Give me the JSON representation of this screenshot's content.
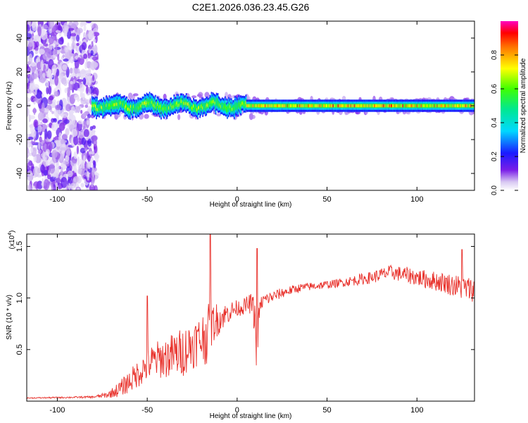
{
  "title": "C2E1.2026.036.23.45.G26",
  "chart_data": [
    {
      "type": "heatmap",
      "xlabel": "Height of straight line (km)",
      "ylabel": "Frequency (Hz)",
      "xlim": [
        -117,
        132
      ],
      "ylim": [
        -50,
        50
      ],
      "xticks": [
        -100,
        -50,
        0,
        50,
        100
      ],
      "xtick_labels": [
        "-100",
        "-50",
        "0",
        "50",
        "100"
      ],
      "yticks": [
        -40,
        -20,
        0,
        20,
        40
      ],
      "ytick_labels": [
        "-40",
        "-20",
        "0",
        "20",
        "40"
      ],
      "colorbar": {
        "label": "Normalized spectral amplitude",
        "range": [
          0,
          1
        ],
        "ticks": [
          0.0,
          0.2,
          0.4,
          0.6,
          0.8
        ],
        "tick_labels": [
          "0.0",
          "0.2",
          "0.4",
          "0.6",
          "0.8"
        ]
      },
      "description_points": {
        "noise_region_x": [
          -117,
          -80
        ],
        "signal_line_freq_hz": 0,
        "signal_start_x": -81
      }
    },
    {
      "type": "line",
      "xlabel": "Height of straight line (km)",
      "ylabel": "SNR (10 * v/v)",
      "y_multiplier": "(x10",
      "y_multiplier_exp": "4",
      "y_multiplier_close": ")",
      "xlim": [
        -117,
        132
      ],
      "ylim": [
        0,
        1.62
      ],
      "xticks": [
        -100,
        -50,
        0,
        50,
        100
      ],
      "xtick_labels": [
        "-100",
        "-50",
        "0",
        "50",
        "100"
      ],
      "yticks": [
        0.5,
        1.0,
        1.5
      ],
      "ytick_labels": [
        "0.5",
        "1.0",
        "1.5"
      ],
      "series": [
        {
          "color": "#e8302a",
          "envelope_x": [
            -117,
            -80,
            -72,
            -65,
            -58,
            -50,
            -45,
            -40,
            -35,
            -30,
            -25,
            -20,
            -17,
            -15,
            -12,
            -8,
            -4,
            0,
            4,
            8,
            10,
            11,
            12,
            14,
            18,
            25,
            35,
            45,
            55,
            65,
            75,
            85,
            95,
            105,
            115,
            125,
            132
          ],
          "envelope_y": [
            0.03,
            0.04,
            0.06,
            0.12,
            0.22,
            0.35,
            0.4,
            0.42,
            0.45,
            0.48,
            0.55,
            0.6,
            0.65,
            0.72,
            0.78,
            0.82,
            0.87,
            0.9,
            0.92,
            0.95,
            0.8,
            0.3,
            0.85,
            0.97,
            1.0,
            1.05,
            1.1,
            1.12,
            1.14,
            1.17,
            1.2,
            1.25,
            1.22,
            1.18,
            1.15,
            1.1,
            1.08
          ],
          "noise_amplitude": [
            0.005,
            0.01,
            0.03,
            0.08,
            0.12,
            0.16,
            0.18,
            0.2,
            0.22,
            0.24,
            0.24,
            0.24,
            0.3,
            0.22,
            0.18,
            0.12,
            0.1,
            0.08,
            0.08,
            0.1,
            0.2,
            0.08,
            0.1,
            0.08,
            0.06,
            0.05,
            0.04,
            0.04,
            0.04,
            0.05,
            0.06,
            0.07,
            0.08,
            0.09,
            0.1,
            0.12,
            0.12
          ]
        }
      ]
    }
  ]
}
